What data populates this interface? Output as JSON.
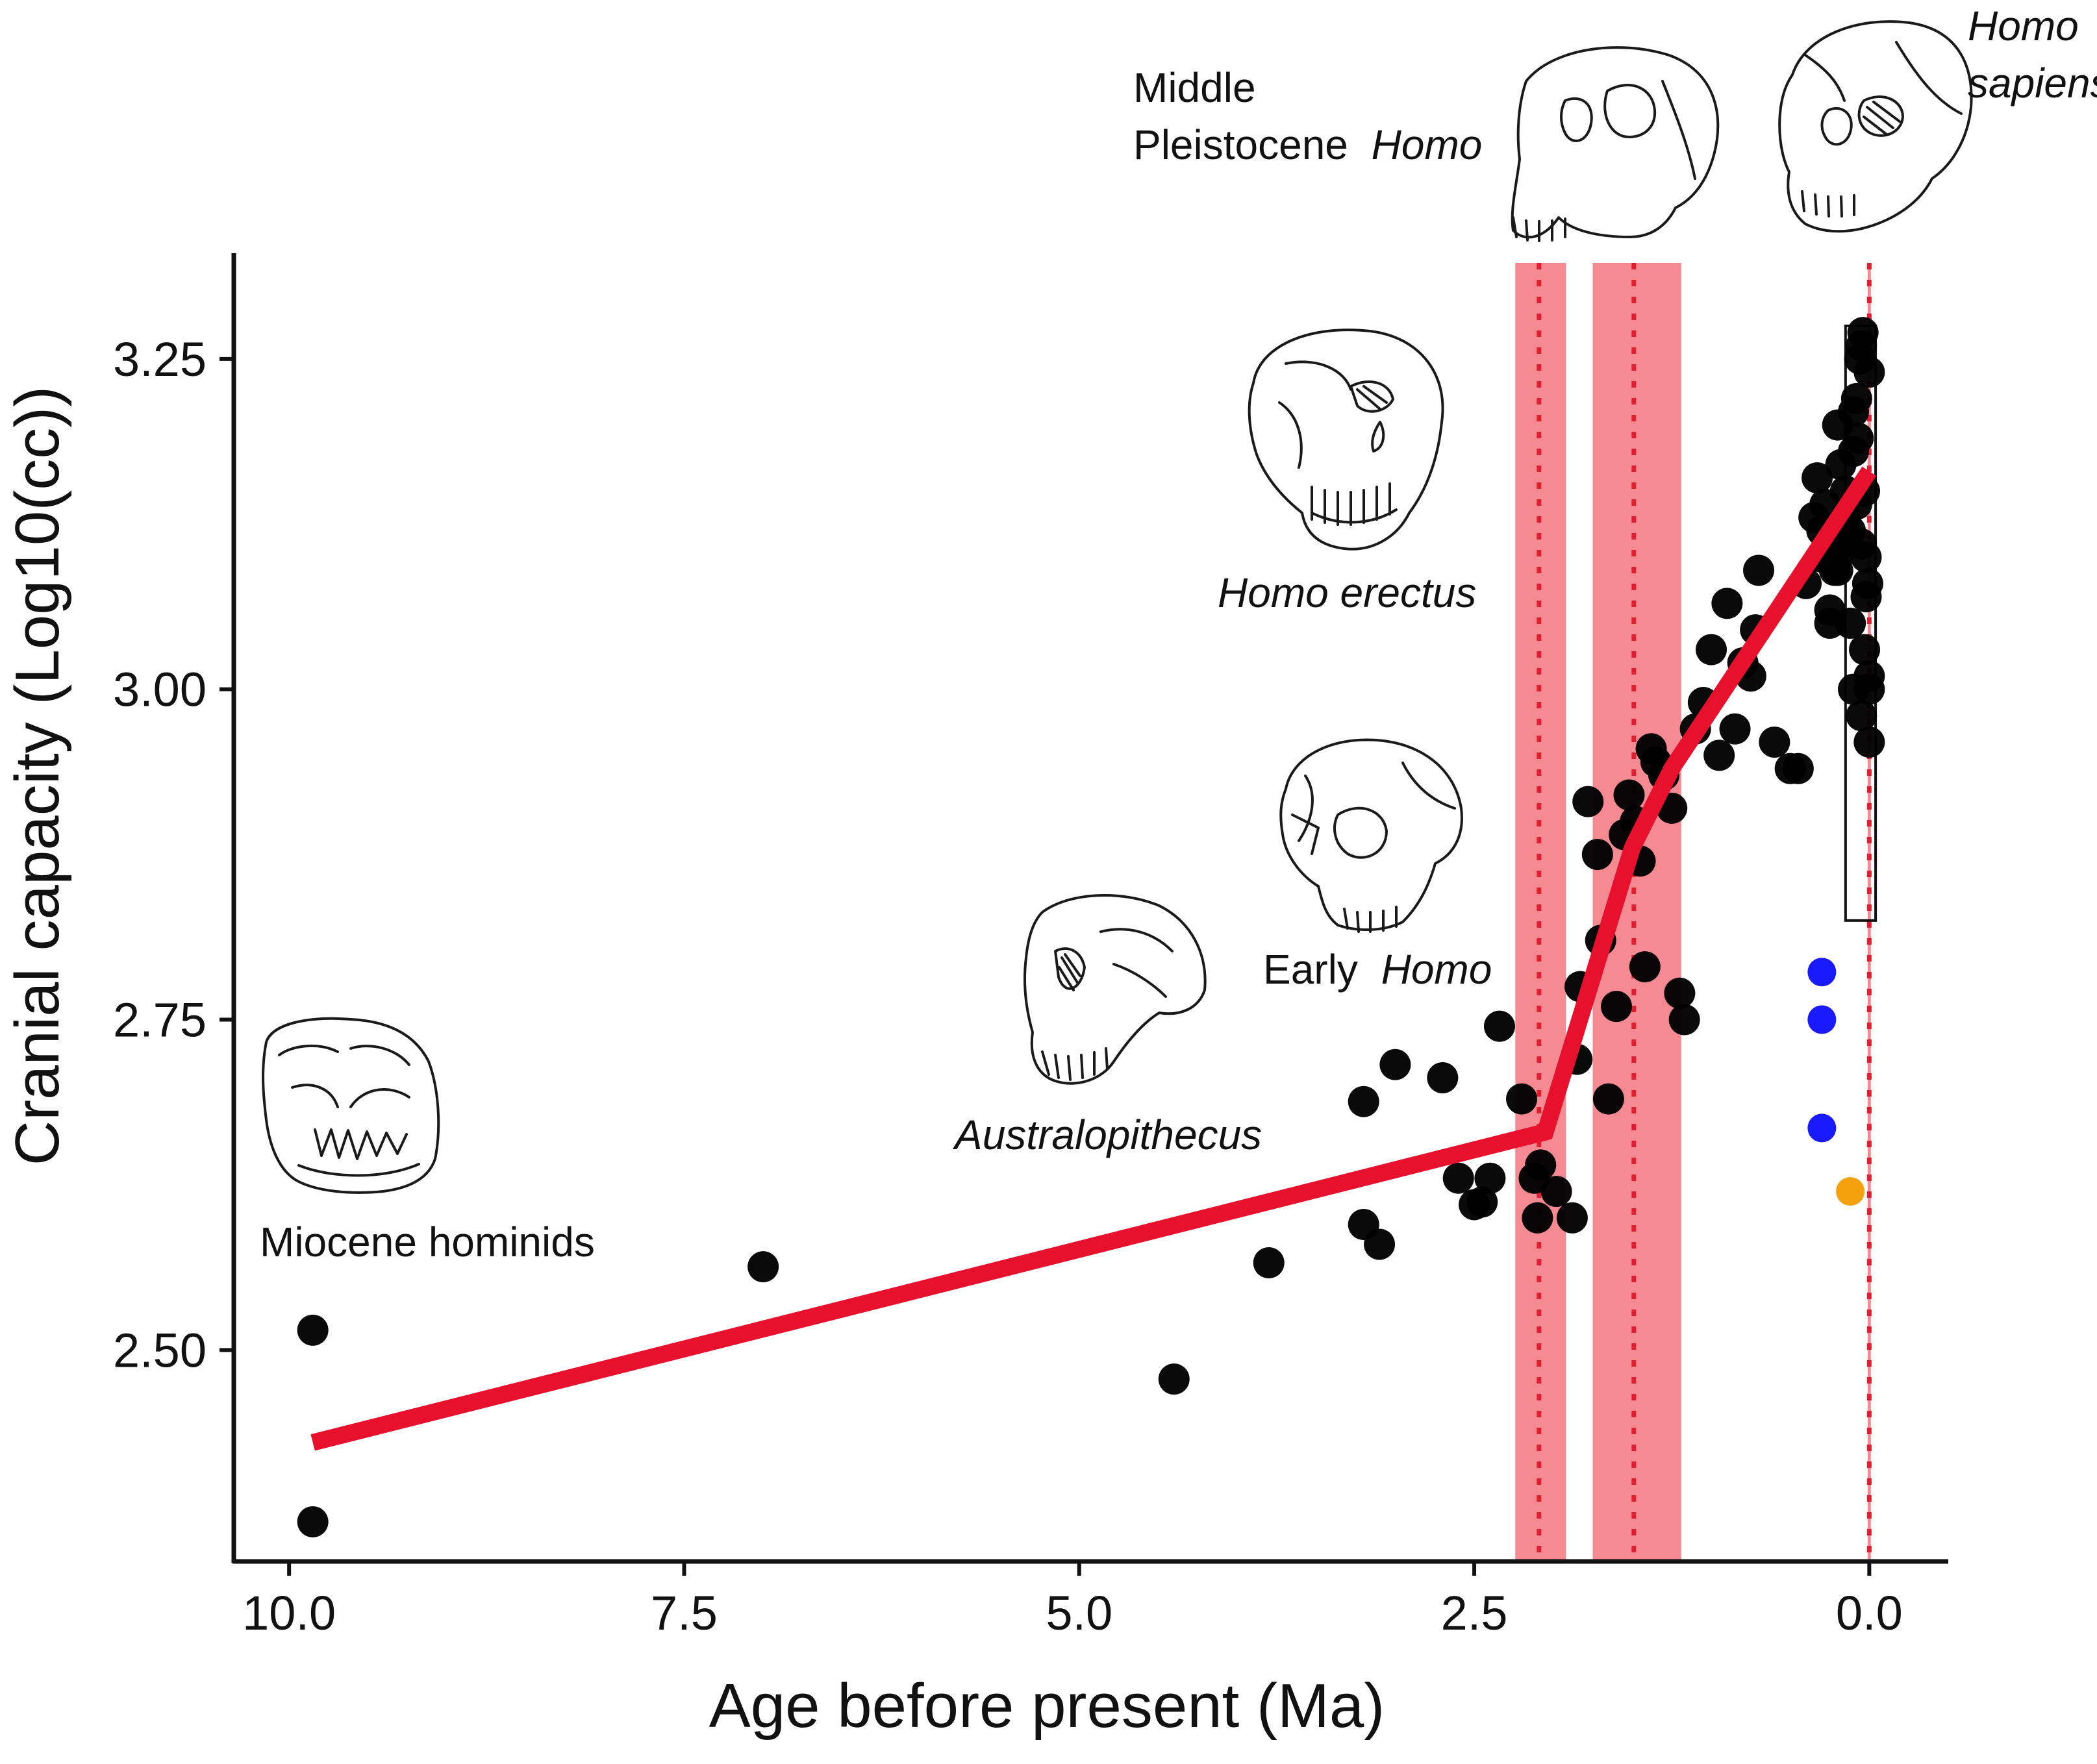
{
  "chart_data": {
    "type": "scatter",
    "title": "",
    "xlabel": "Age before present (Ma)",
    "ylabel": "Cranial capacity (Log10(cc))",
    "x_reversed": true,
    "xlim": [
      10.35,
      -0.5
    ],
    "ylim": [
      2.34,
      3.33
    ],
    "xticks": [
      10.0,
      7.5,
      5.0,
      2.5,
      0.0
    ],
    "xtick_labels": [
      "10.0",
      "7.5",
      "5.0",
      "2.5",
      "0.0"
    ],
    "yticks": [
      2.5,
      2.75,
      3.0,
      3.25
    ],
    "ytick_labels": [
      "2.50",
      "2.75",
      "3.00",
      "3.25"
    ],
    "grid": false,
    "legend": "none",
    "colors": {
      "points": "#000000",
      "fit_line": "#e8112d",
      "change_band": "#f4808a",
      "change_line": "#e02030",
      "blue_points": "#1a1aff",
      "orange_point": "#f5a10d"
    },
    "annotations": [
      {
        "text": "Miocene hominids",
        "italic": false
      },
      {
        "text": "Australopithecus",
        "italic": true
      },
      {
        "text": "Early",
        "italic": false,
        "suffix": "Homo",
        "suffix_italic": true
      },
      {
        "text": "Homo erectus",
        "italic": true
      },
      {
        "text": "Middle",
        "italic": false
      },
      {
        "text": "Pleistocene",
        "italic": false,
        "suffix": "Homo",
        "suffix_italic": true
      },
      {
        "text": "Homo",
        "italic": true
      },
      {
        "text": "sapiens",
        "italic": true
      }
    ],
    "skull_icons": [
      "miocene-skull-icon",
      "australopithecus-skull-icon",
      "early-homo-skull-icon",
      "homo-erectus-skull-icon",
      "middle-pleistocene-skull-icon",
      "homo-sapiens-skull-icon"
    ],
    "change_bands": [
      {
        "center": 2.09,
        "from": 2.24,
        "to": 1.92
      },
      {
        "center": 1.49,
        "from": 1.75,
        "to": 1.19
      },
      {
        "center": 0.0,
        "from": 0.01,
        "to": -0.01
      }
    ],
    "fit_line": {
      "x": [
        9.85,
        2.05,
        1.5,
        1.25,
        0.0
      ],
      "y": [
        2.43,
        2.665,
        2.88,
        2.94,
        3.165
      ]
    },
    "modern_box": {
      "x_from": 0.15,
      "x_to": -0.04,
      "y_from": 2.825,
      "y_to": 3.275
    },
    "series": [
      {
        "name": "",
        "color": "#000000",
        "x": [
          9.85,
          9.85,
          7.0,
          4.4,
          3.8,
          3.2,
          3.2,
          3.1,
          3.0,
          2.7,
          2.6,
          2.5,
          2.45,
          2.4,
          2.34,
          2.2,
          2.12,
          2.1,
          2.08,
          1.98,
          1.88,
          1.85,
          1.83,
          1.78,
          1.72,
          1.7,
          1.65,
          1.6,
          1.55,
          1.52,
          1.48,
          1.45,
          1.42,
          1.38,
          1.35,
          1.3,
          1.25,
          1.2,
          1.17,
          1.1,
          1.05,
          1.0,
          0.95,
          0.9,
          0.85,
          0.8,
          0.75,
          0.72,
          0.7,
          0.6,
          0.5,
          0.45,
          0.4,
          0.35,
          0.33,
          0.3,
          0.28,
          0.25,
          0.22,
          0.2,
          0.2,
          0.18,
          0.15,
          0.12,
          0.1,
          0.08,
          0.06,
          0.05,
          0.04,
          0.02,
          0.01,
          0.0,
          0.0,
          0.0,
          0.02,
          0.03,
          0.05,
          0.08,
          0.1,
          0.12,
          0.15,
          0.18,
          0.2,
          0.25,
          0.3,
          0.05,
          0.1,
          0.03,
          0.07,
          0.0
        ],
        "y": [
          2.515,
          2.37,
          2.563,
          2.478,
          2.566,
          2.595,
          2.688,
          2.58,
          2.716,
          2.706,
          2.63,
          2.61,
          2.612,
          2.63,
          2.745,
          2.69,
          2.63,
          2.6,
          2.64,
          2.62,
          2.6,
          2.72,
          2.775,
          2.915,
          2.875,
          2.81,
          2.69,
          2.76,
          2.89,
          2.92,
          2.9,
          2.87,
          2.79,
          2.955,
          2.945,
          2.935,
          2.91,
          2.77,
          2.75,
          2.97,
          2.99,
          3.03,
          2.95,
          3.065,
          2.97,
          3.02,
          3.01,
          3.045,
          3.09,
          2.96,
          2.94,
          2.94,
          3.08,
          3.13,
          3.16,
          3.12,
          3.14,
          3.05,
          3.09,
          3.1,
          3.2,
          3.17,
          3.15,
          3.12,
          3.18,
          3.22,
          3.25,
          3.26,
          3.27,
          3.1,
          3.08,
          3.24,
          3.0,
          2.96,
          3.07,
          3.03,
          3.11,
          3.14,
          3.0,
          3.05,
          3.13,
          3.11,
          3.09,
          3.06,
          3.1,
          2.98,
          3.21,
          3.15,
          3.19,
          3.01
        ]
      },
      {
        "name": "",
        "color": "#1a1aff",
        "x": [
          0.3,
          0.3,
          0.3
        ],
        "y": [
          2.786,
          2.75,
          2.668
        ]
      },
      {
        "name": "",
        "color": "#f5a10d",
        "x": [
          0.12
        ],
        "y": [
          2.62
        ]
      }
    ]
  }
}
